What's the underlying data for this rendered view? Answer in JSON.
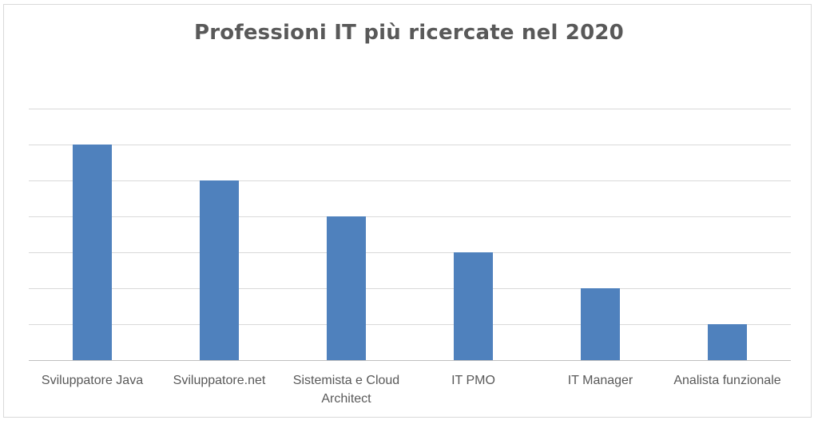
{
  "chart_data": {
    "type": "bar",
    "title": "Professioni IT più ricercate nel 2020",
    "categories": [
      [
        "Sviluppatore Java"
      ],
      [
        "Sviluppatore.net"
      ],
      [
        "Sistemista e Cloud",
        "Architect"
      ],
      [
        "IT PMO"
      ],
      [
        "IT Manager"
      ],
      [
        "Analista funzionale"
      ]
    ],
    "values": [
      6,
      5,
      4,
      3,
      2,
      1
    ],
    "ylim": [
      0,
      7
    ],
    "gridlines": true,
    "bar_color": "#4f81bd",
    "grid_color": "#d9d9d9",
    "axis_color": "#bfbfbf"
  }
}
